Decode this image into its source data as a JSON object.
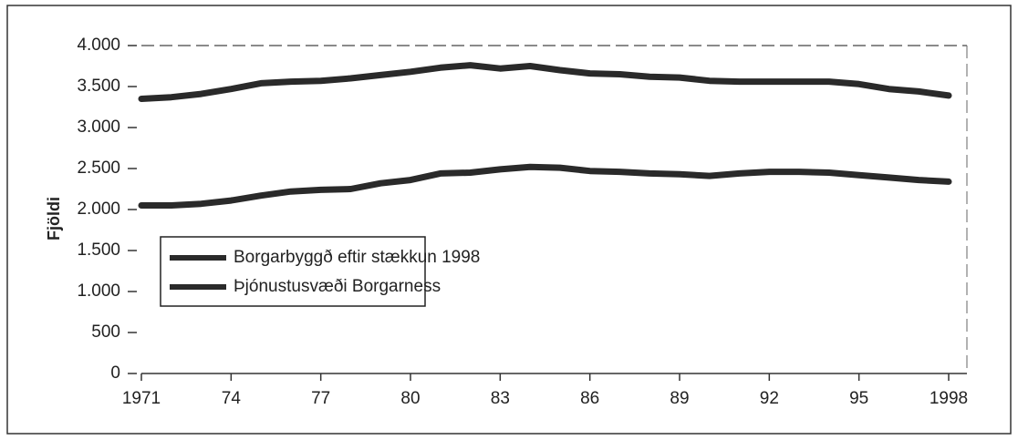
{
  "chart_data": {
    "type": "line",
    "y_label": "Fjöldi",
    "x": [
      1971,
      1972,
      1973,
      1974,
      1975,
      1976,
      1977,
      1978,
      1979,
      1980,
      1981,
      1982,
      1983,
      1984,
      1985,
      1986,
      1987,
      1988,
      1989,
      1990,
      1991,
      1992,
      1993,
      1994,
      1995,
      1996,
      1997,
      1998
    ],
    "series": [
      {
        "name": "Borgarbyggð eftir stækkun 1998",
        "color": "#2a2a2a",
        "values": [
          3350,
          3370,
          3410,
          3470,
          3540,
          3560,
          3570,
          3600,
          3640,
          3680,
          3730,
          3760,
          3720,
          3750,
          3700,
          3660,
          3650,
          3620,
          3610,
          3570,
          3560,
          3560,
          3560,
          3560,
          3530,
          3470,
          3440,
          3390
        ]
      },
      {
        "name": "Þjónustusvæði Borgarness",
        "color": "#2a2a2a",
        "values": [
          2050,
          2050,
          2070,
          2110,
          2170,
          2220,
          2240,
          2250,
          2320,
          2360,
          2440,
          2450,
          2490,
          2520,
          2510,
          2470,
          2460,
          2440,
          2430,
          2410,
          2440,
          2460,
          2460,
          2450,
          2420,
          2390,
          2360,
          2340
        ]
      }
    ],
    "xlim": [
      1971,
      1998
    ],
    "xticks": [
      {
        "value": 1971,
        "label": "1971"
      },
      {
        "value": 1974,
        "label": "74"
      },
      {
        "value": 1977,
        "label": "77"
      },
      {
        "value": 1980,
        "label": "80"
      },
      {
        "value": 1983,
        "label": "83"
      },
      {
        "value": 1986,
        "label": "86"
      },
      {
        "value": 1989,
        "label": "89"
      },
      {
        "value": 1992,
        "label": "92"
      },
      {
        "value": 1995,
        "label": "95"
      },
      {
        "value": 1998,
        "label": "1998"
      }
    ],
    "ylim": [
      0,
      4000
    ],
    "yticks": [
      0,
      500,
      {
        "value": 1000,
        "label": "1.000"
      },
      {
        "value": 1500,
        "label": "1.500"
      },
      {
        "value": 2000,
        "label": "2.000"
      },
      {
        "value": 2500,
        "label": "2.500"
      },
      {
        "value": 3000,
        "label": "3.000"
      },
      {
        "value": 3500,
        "label": "3.500"
      },
      {
        "value": 4000,
        "label": "4.000"
      }
    ],
    "grid": false,
    "legend": "left"
  }
}
